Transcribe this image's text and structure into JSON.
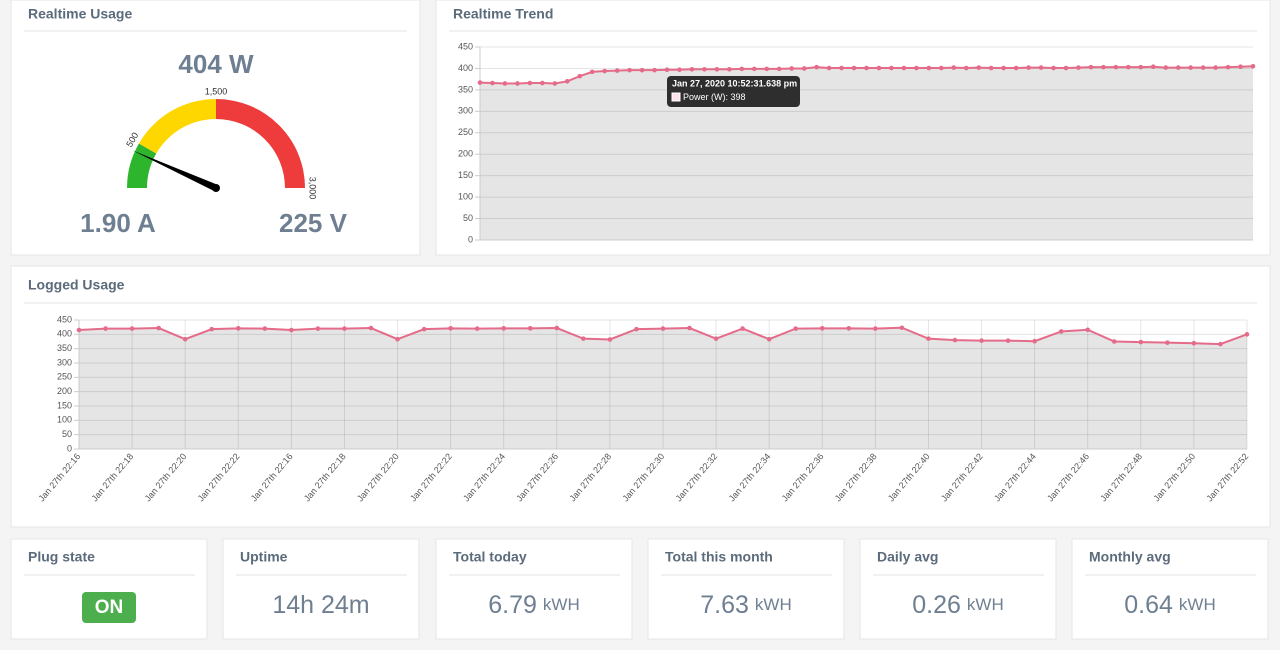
{
  "realtime_usage": {
    "title": "Realtime Usage",
    "power": "404 W",
    "current": "1.90 A",
    "voltage": "225 V",
    "gauge": {
      "type": "gauge",
      "value": 404,
      "min": 0,
      "max": 3000,
      "ticks": [
        500,
        {
          "value": 1500,
          "label": "1,500"
        },
        {
          "value": 3000,
          "label": "3,000"
        }
      ],
      "bands": [
        {
          "from": 0,
          "to": 500,
          "color": "#2db52d"
        },
        {
          "from": 500,
          "to": 1500,
          "color": "#ffd700"
        },
        {
          "from": 1500,
          "to": 3000,
          "color": "#ee3b3b"
        }
      ]
    }
  },
  "realtime_trend": {
    "type": "line",
    "title": "Realtime Trend",
    "ylim": [
      0,
      450
    ],
    "yticks": [
      0,
      50,
      100,
      150,
      200,
      250,
      300,
      350,
      400,
      450
    ],
    "grid": true,
    "series": [
      {
        "name": "Power (W)",
        "color": "#e56b8a",
        "values": [
          367,
          366,
          365,
          365,
          366,
          366,
          365,
          370,
          382,
          392,
          394,
          395,
          396,
          396,
          396,
          397,
          397,
          398,
          398,
          398,
          398,
          399,
          399,
          399,
          399,
          400,
          400,
          403,
          401,
          401,
          401,
          401,
          401,
          401,
          401,
          401,
          401,
          401,
          402,
          401,
          402,
          401,
          401,
          401,
          402,
          402,
          401,
          401,
          402,
          403,
          403,
          403,
          403,
          403,
          404,
          402,
          402,
          402,
          402,
          402,
          403,
          404,
          405
        ]
      }
    ],
    "tooltip": {
      "title": "Jan 27, 2020 10:52:31.638 pm",
      "label": "Power (W): 398"
    }
  },
  "logged_usage": {
    "type": "line",
    "title": "Logged Usage",
    "ylim": [
      0,
      450
    ],
    "yticks": [
      0,
      50,
      100,
      150,
      200,
      250,
      300,
      350,
      400,
      450
    ],
    "grid": true,
    "categories": [
      "Jan 27th 22:16",
      null,
      "Jan 27th 22:18",
      null,
      "Jan 27th 22:20",
      null,
      "Jan 27th 22:22",
      null,
      "Jan 27th 22:16",
      null,
      "Jan 27th 22:18",
      null,
      "Jan 27th 22:20",
      null,
      "Jan 27th 22:22",
      null,
      "Jan 27th 22:24",
      null,
      "Jan 27th 22:26",
      null,
      "Jan 27th 22:28",
      null,
      "Jan 27th 22:30",
      null,
      "Jan 27th 22:32",
      null,
      "Jan 27th 22:34",
      null,
      "Jan 27th 22:36",
      null,
      "Jan 27th 22:38",
      null,
      "Jan 27th 22:40",
      null,
      "Jan 27th 22:42",
      null,
      "Jan 27th 22:44",
      null,
      "Jan 27th 22:46",
      null,
      "Jan 27th 22:48",
      null,
      "Jan 27th 22:50",
      null,
      "Jan 27th 22:52"
    ],
    "series": [
      {
        "name": "Power (W)",
        "color": "#e56b8a",
        "values": [
          415,
          420,
          420,
          422,
          383,
          418,
          421,
          420,
          415,
          420,
          420,
          422,
          383,
          418,
          421,
          420,
          421,
          421,
          422,
          385,
          382,
          418,
          420,
          422,
          385,
          420,
          383,
          420,
          421,
          421,
          420,
          423,
          385,
          380,
          378,
          378,
          376,
          410,
          416,
          375,
          373,
          371,
          369,
          366,
          400
        ]
      }
    ]
  },
  "cards": [
    {
      "title": "Plug state",
      "value": "ON"
    },
    {
      "title": "Uptime",
      "value": "14h 24m"
    },
    {
      "title": "Total today",
      "value": "6.79",
      "unit": "kWH"
    },
    {
      "title": "Total this month",
      "value": "7.63",
      "unit": "kWH"
    },
    {
      "title": "Daily avg",
      "value": "0.26",
      "unit": "kWH"
    },
    {
      "title": "Monthly avg",
      "value": "0.64",
      "unit": "kWH"
    }
  ]
}
